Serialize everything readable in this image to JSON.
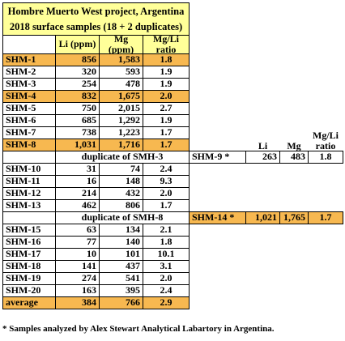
{
  "title": [
    "Hombre Muerto West project, Argentina",
    "2018 surface samples (18 + 2 duplicates)"
  ],
  "left_table": {
    "headers": [
      "Li (ppm)",
      "Mg (ppm)",
      "Mg/Li ratio"
    ],
    "rows": [
      [
        "SHM-1",
        "856",
        "1,583",
        "1.8"
      ],
      [
        "SHM-2",
        "320",
        "593",
        "1.9"
      ],
      [
        "SHM-3",
        "254",
        "478",
        "1.9"
      ],
      [
        "SHM-4",
        "832",
        "1,675",
        "2.0"
      ],
      [
        "SHM-5",
        "750",
        "2,015",
        "2.7"
      ],
      [
        "SHM-6",
        "685",
        "1,292",
        "1.9"
      ],
      [
        "SHM-7",
        "738",
        "1,223",
        "1.7"
      ],
      [
        "SHM-8",
        "1,031",
        "1,716",
        "1.7"
      ],
      [
        "duplicate of SMH-3"
      ],
      [
        "SHM-10",
        "31",
        "74",
        "2.4"
      ],
      [
        "SHM-11",
        "16",
        "148",
        "9.3"
      ],
      [
        "SHM-12",
        "214",
        "432",
        "2.0"
      ],
      [
        "SHM-13",
        "462",
        "806",
        "1.7"
      ],
      [
        "duplicate of SMH-8"
      ],
      [
        "SHM-15",
        "63",
        "134",
        "2.1"
      ],
      [
        "SHM-16",
        "77",
        "140",
        "1.8"
      ],
      [
        "SHM-17",
        "10",
        "101",
        "10.1"
      ],
      [
        "SHM-18",
        "141",
        "437",
        "3.1"
      ],
      [
        "SHM-19",
        "274",
        "541",
        "2.0"
      ],
      [
        "SHM-20",
        "163",
        "395",
        "2.4"
      ],
      [
        "average",
        "384",
        "766",
        "2.9"
      ]
    ]
  },
  "right_table": {
    "headers": [
      "Li",
      "Mg",
      "Mg/Li ratio"
    ],
    "rows": [
      [
        "SHM-9 *",
        "263",
        "483",
        "1.8"
      ],
      [
        "SHM-14 *",
        "1,021",
        "1,765",
        "1.7"
      ]
    ]
  },
  "footnote": "* Samples analyzed by Alex Stewart Analytical Labartory in Argentina."
}
